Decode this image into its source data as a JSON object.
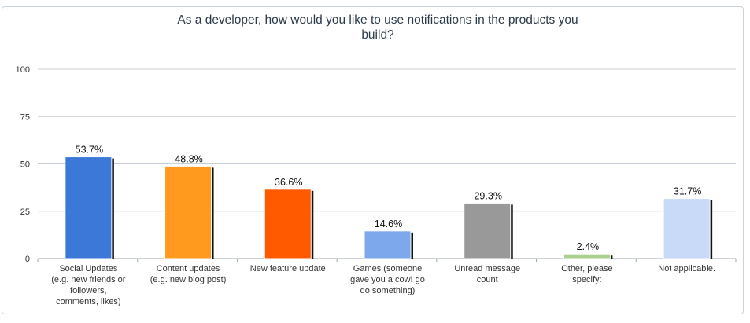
{
  "chart_data": {
    "type": "bar",
    "title": "As a developer, how would you like to use notifications in the products you build?",
    "title_lines": [
      "As a developer, how would you like to use notifications in the products you",
      "build?"
    ],
    "xlabel": "",
    "ylabel": "",
    "ylim": [
      0,
      100
    ],
    "yticks": [
      0,
      25,
      50,
      75,
      100
    ],
    "grid": true,
    "categories": [
      [
        "Social Updates",
        "(e.g. new friends or",
        "followers,",
        "comments, likes)"
      ],
      [
        "Content updates",
        "(e.g. new blog post)"
      ],
      [
        "New feature update"
      ],
      [
        "Games (someone",
        "gave you a cow! go",
        "do something)"
      ],
      [
        "Unread message",
        "count"
      ],
      [
        "Other, please",
        "specify:"
      ],
      [
        "Not applicable."
      ]
    ],
    "values": [
      53.7,
      48.8,
      36.6,
      14.6,
      29.3,
      2.4,
      31.7
    ],
    "value_labels": [
      "53.7%",
      "48.8%",
      "36.6%",
      "14.6%",
      "29.3%",
      "2.4%",
      "31.7%"
    ],
    "colors": [
      "#3b78d8",
      "#ff9a1f",
      "#ff5a00",
      "#7ea8ec",
      "#999999",
      "#a9d08e",
      "#c9daf8"
    ]
  }
}
